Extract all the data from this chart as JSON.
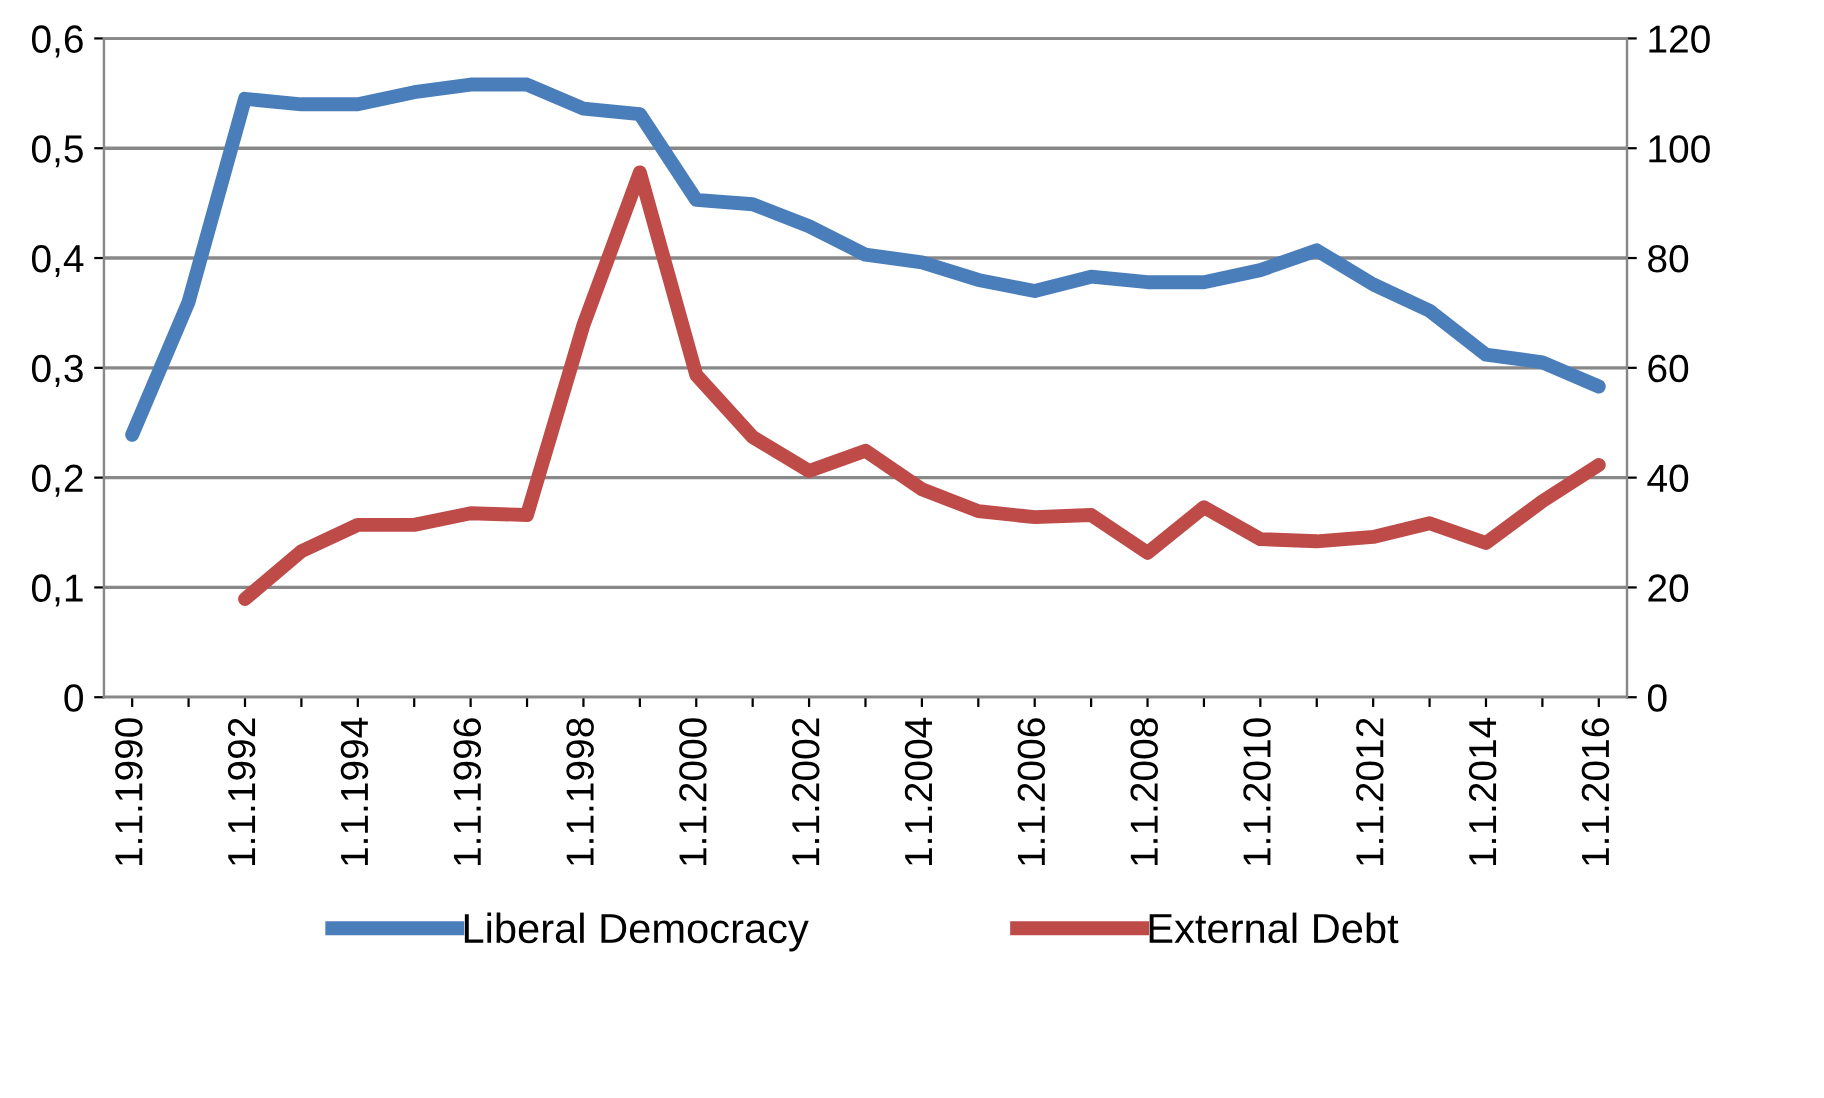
{
  "chart_data": {
    "type": "line",
    "categories": [
      "1.1.1990",
      null,
      "1.1.1992",
      null,
      "1.1.1994",
      null,
      "1.1.1996",
      null,
      "1.1.1998",
      null,
      "1.1.2000",
      null,
      "1.1.2002",
      null,
      "1.1.2004",
      null,
      "1.1.2006",
      null,
      "1.1.2008",
      null,
      "1.1.2010",
      null,
      "1.1.2012",
      null,
      "1.1.2014",
      null,
      "1.1.2016"
    ],
    "series": [
      {
        "name": "Liberal Democracy",
        "color": "#4a7ebb",
        "values": [
          0.239,
          0.36,
          0.545,
          0.54,
          0.54,
          0.551,
          0.558,
          0.558,
          0.536,
          0.531,
          0.453,
          0.449,
          0.429,
          0.403,
          0.396,
          0.38,
          0.37,
          0.383,
          0.378,
          0.378,
          0.389,
          0.407,
          0.376,
          0.352,
          0.312,
          0.305,
          0.283
        ]
      },
      {
        "name": "External Debt",
        "color": "#be4b48",
        "axis": "y2",
        "values": [
          null,
          null,
          17.9,
          26.6,
          31.4,
          31.4,
          33.5,
          33.2,
          67.8,
          95.6,
          58.7,
          47.4,
          41.2,
          44.9,
          37.9,
          33.9,
          32.8,
          33.2,
          26.3,
          34.6,
          28.8,
          28.4,
          29.2,
          31.7,
          28.1,
          35.7,
          42.3
        ]
      }
    ],
    "ylim": [
      0,
      0.6
    ],
    "yticks": [
      0,
      {
        "value": 0.1,
        "label": "0,1"
      },
      {
        "value": 0.2,
        "label": "0,2"
      },
      {
        "value": 0.3,
        "label": "0,3"
      },
      {
        "value": 0.4,
        "label": "0,4"
      },
      {
        "value": 0.5,
        "label": "0,5"
      },
      {
        "value": 0.6,
        "label": "0,6"
      }
    ],
    "y2lim": [
      0,
      120
    ],
    "y2ticks": [
      0,
      20,
      40,
      60,
      80,
      100,
      120
    ],
    "grid": "y",
    "legend": "bottom",
    "marker": "none",
    "line_style": "solid"
  }
}
